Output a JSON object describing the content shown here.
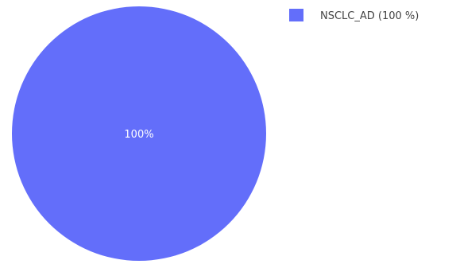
{
  "chart_data": {
    "type": "pie",
    "labels": [
      "NSCLC_AD"
    ],
    "values": [
      100
    ],
    "slice_labels": [
      "100%"
    ],
    "legend_entries": [
      "NSCLC_AD (100 %)"
    ],
    "colors": [
      "#636efa"
    ],
    "legend_position": "top-right",
    "title": ""
  }
}
